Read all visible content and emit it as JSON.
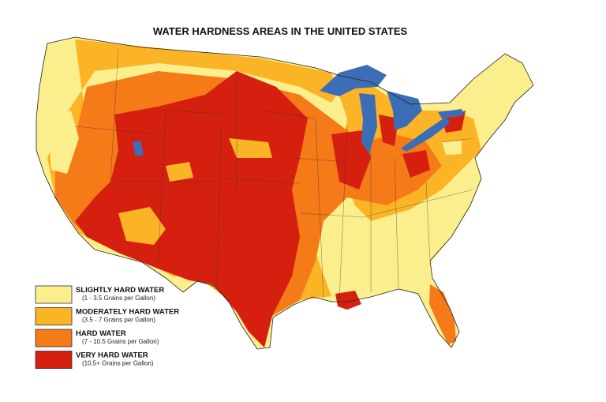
{
  "title": "WATER HARDNESS AREAS IN THE UNITED STATES",
  "legend": [
    {
      "label": "SLIGHTLY HARD WATER",
      "range": "(1 - 3.5 Grains per Gallon)",
      "color": "#fbee8c"
    },
    {
      "label": "MODERATELY HARD WATER",
      "range": "(3.5 - 7 Grains per Gallon)",
      "color": "#fbb426"
    },
    {
      "label": "HARD WATER",
      "range": "(7 - 10.5 Grains per Gallon)",
      "color": "#f57a18"
    },
    {
      "label": "VERY HARD WATER",
      "range": "(10.5+ Grains per Gallon)",
      "color": "#d5200f"
    }
  ]
}
